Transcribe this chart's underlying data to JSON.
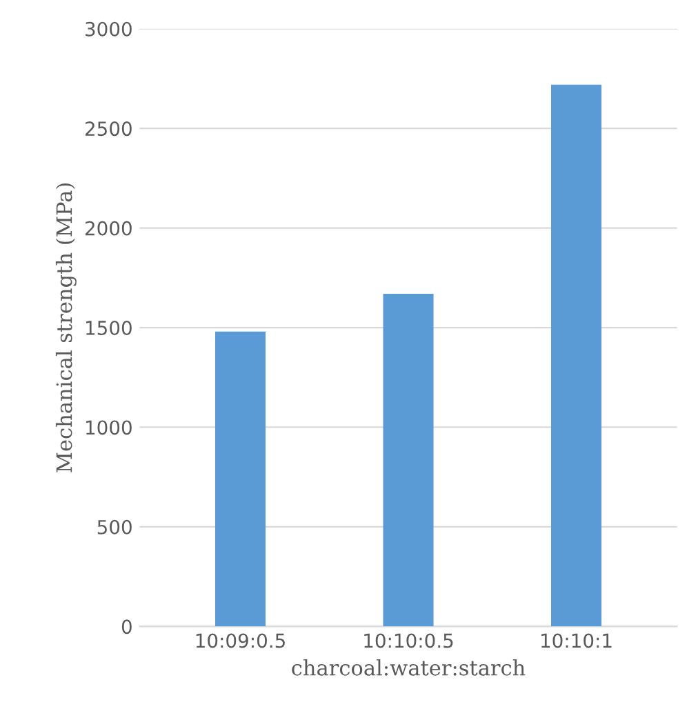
{
  "chart_data": {
    "type": "bar",
    "xlabel": "charcoal:water:starch",
    "ylabel": "Mechanical strength (MPa)",
    "categories": [
      "10:09:0.5",
      "10:10:0.5",
      "10:10:1"
    ],
    "values": [
      1480,
      1670,
      2720
    ],
    "color": "#5b9bd5",
    "ylim": [
      0,
      3000
    ],
    "yticks": [
      0,
      500,
      1000,
      1500,
      2000,
      2500,
      3000
    ],
    "grid": "y"
  }
}
